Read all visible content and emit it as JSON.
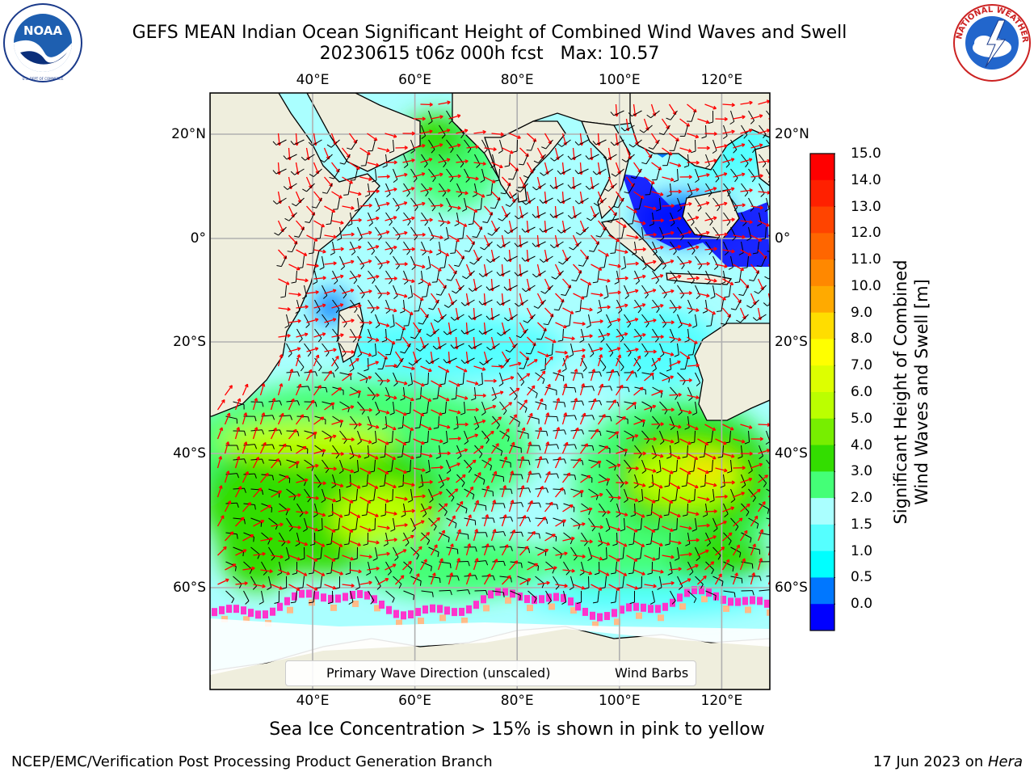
{
  "header": {
    "title_line1": "GEFS MEAN Indian Ocean Significant Height of Combined Wind Waves and Swell",
    "title_line2": "20230615 t06z 000h fcst   Max: 10.57"
  },
  "logos": {
    "noaa": {
      "text": "NOAA",
      "ring_text": "NATIONAL OCEANIC AND ATMOSPHERIC ADMINISTRATION · U.S. DEPARTMENT OF COMMERCE"
    },
    "nws": {
      "ring_text": "NATIONAL WEATHER SERVICE"
    }
  },
  "map": {
    "lon_ticks": [
      "40°E",
      "60°E",
      "80°E",
      "100°E",
      "120°E"
    ],
    "lat_ticks": [
      "20°N",
      "0°",
      "20°S",
      "40°S",
      "60°S"
    ],
    "lon_range": [
      20,
      130
    ],
    "lat_range": [
      -74,
      28
    ],
    "colors": {
      "land": "#efeedd",
      "coast": "#000000",
      "grid": "#b0b0b0",
      "wave_arrow": "#ff0000",
      "wind_barb": "#000000",
      "sea_ice": "#ff33cc"
    }
  },
  "legend": {
    "primary_wave": "Primary Wave Direction (unscaled)",
    "wind_barbs": "Wind Barbs"
  },
  "colorbar": {
    "title_line1": "Significant Height of Combined",
    "title_line2": "Wind Waves and Swell [m]",
    "tick_labels": [
      "15.0",
      "14.0",
      "13.0",
      "12.0",
      "11.0",
      "10.0",
      "9.0",
      "8.0",
      "7.0",
      "6.0",
      "5.0",
      "4.0",
      "3.0",
      "2.0",
      "1.5",
      "1.0",
      "0.5",
      "0.0"
    ],
    "colors_top_to_bottom": [
      "#ff0000",
      "#ff2000",
      "#ff4400",
      "#ff6600",
      "#ff8800",
      "#ffaa00",
      "#ffdd00",
      "#ffff00",
      "#ddff00",
      "#bbff00",
      "#77ee00",
      "#33dd00",
      "#44ff77",
      "#aaffff",
      "#55ffff",
      "#00ffff",
      "#0077ff",
      "#0000ff"
    ]
  },
  "footnote": "Sea Ice Concentration > 15% is shown in pink to yellow",
  "credits": {
    "left": "NCEP/EMC/Verification Post Processing Product Generation Branch",
    "right_prefix": "17 Jun 2023 on ",
    "right_host": "Hera"
  }
}
